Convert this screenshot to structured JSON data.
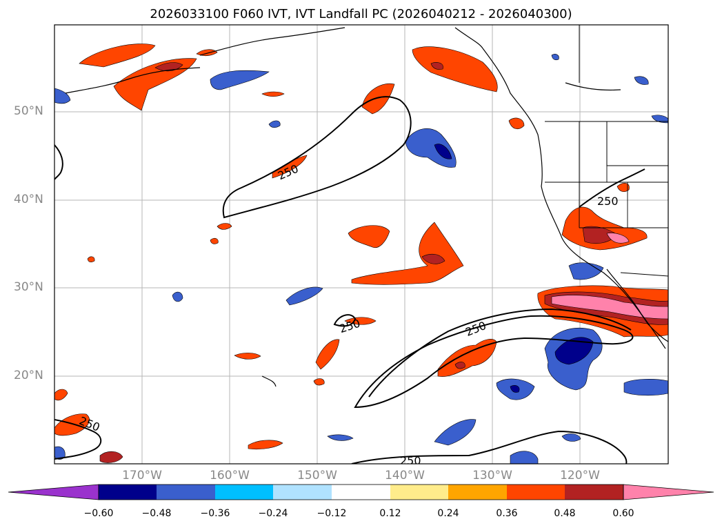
{
  "title": "2026033100 F060 IVT, IVT Landfall PC (2026040212 - 2026040300)",
  "latitude_labels": [
    "50°N",
    "40°N",
    "30°N",
    "20°N"
  ],
  "longitude_labels": [
    "170°W",
    "160°W",
    "150°W",
    "140°W",
    "130°W",
    "120°W"
  ],
  "contour_labels": [
    "250",
    "250",
    "250",
    "250",
    "250",
    "250"
  ],
  "colorbar": {
    "ticks": [
      "−0.60",
      "−0.48",
      "−0.36",
      "−0.24",
      "−0.12",
      "0.12",
      "0.24",
      "0.36",
      "0.48",
      "0.60"
    ],
    "colors": [
      "#9a32cd",
      "#00008b",
      "#3a5fcd",
      "#00bfff",
      "#b0e2ff",
      "#ffffff",
      "#ffec8b",
      "#ffa500",
      "#ff4500",
      "#b22222",
      "#ff82ab"
    ]
  },
  "colors": {
    "pos_low": "#ffec8b",
    "pos_mid": "#ffa500",
    "pos_high": "#ff4500",
    "pos_vhigh": "#b22222",
    "pos_max": "#ff82ab",
    "neg_low": "#b0e2ff",
    "neg_mid": "#00bfff",
    "neg_high": "#3a5fcd",
    "neg_vhigh": "#00008b"
  }
}
